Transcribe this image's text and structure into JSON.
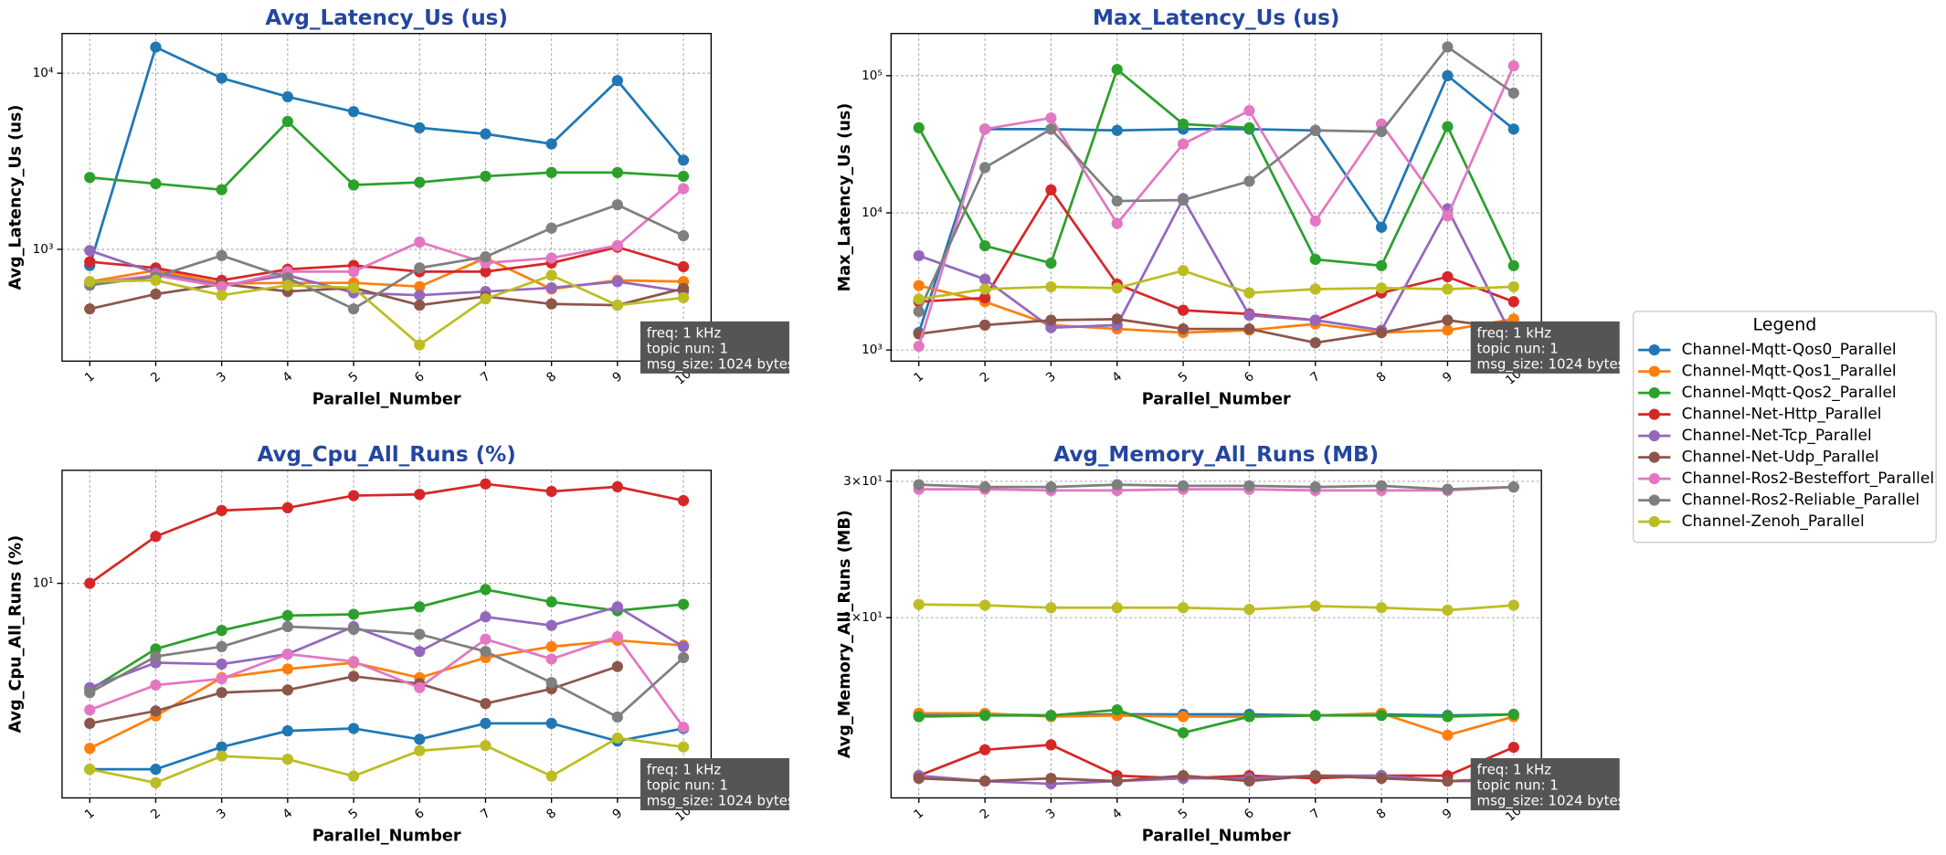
{
  "legend": {
    "title": "Legend",
    "position": "right"
  },
  "chart_data": [
    {
      "type": "line",
      "title": "Avg_Latency_Us  (us)",
      "xlabel": "Parallel_Number",
      "ylabel": "Avg_Latency_Us (us)",
      "log": true,
      "grid": true,
      "annotation": [
        "freq: 1 kHz",
        "topic nun: 1",
        "msg_size: 1024 bytes"
      ],
      "x": [
        1,
        2,
        3,
        4,
        5,
        6,
        7,
        8,
        9,
        10
      ],
      "xlim": [
        0.58,
        10.42
      ],
      "xticks": [
        1,
        2,
        3,
        4,
        5,
        6,
        7,
        8,
        9,
        10
      ],
      "ylim": [
        232,
        16800
      ],
      "yticks": [
        {
          "value": 1000,
          "label": "10³"
        },
        {
          "value": 10000,
          "label": "10⁴"
        }
      ],
      "series": [
        {
          "name": "Channel-Mqtt-Qos0_Parallel",
          "color": "#1f77b4",
          "values": [
            810,
            14060,
            9380,
            7350,
            6050,
            4900,
            4520,
            3970,
            9080,
            3210
          ]
        },
        {
          "name": "Channel-Mqtt-Qos1_Parallel",
          "color": "#ff7f0e",
          "values": [
            656,
            759,
            640,
            645,
            645,
            615,
            893,
            595,
            667,
            656
          ]
        },
        {
          "name": "Channel-Mqtt-Qos2_Parallel",
          "color": "#2ca02c",
          "values": [
            2560,
            2360,
            2180,
            5320,
            2320,
            2400,
            2600,
            2730,
            2730,
            2600
          ]
        },
        {
          "name": "Channel-Net-Http_Parallel",
          "color": "#d62728",
          "values": [
            850,
            784,
            667,
            770,
            810,
            747,
            747,
            837,
            1030,
            797
          ]
        },
        {
          "name": "Channel-Net-Tcp_Parallel",
          "color": "#9467bd",
          "values": [
            984,
            735,
            625,
            712,
            567,
            549,
            576,
            605,
            656,
            576
          ]
        },
        {
          "name": "Channel-Net-Udp_Parallel",
          "color": "#8c564b",
          "values": [
            459,
            557,
            635,
            577,
            605,
            482,
            540,
            490,
            482,
            600
          ]
        },
        {
          "name": "Channel-Ros2-Besteffort_Parallel",
          "color": "#e377c2",
          "values": [
            645,
            712,
            615,
            747,
            747,
            1100,
            837,
            893,
            1050,
            2210
          ]
        },
        {
          "name": "Channel-Ros2-Reliable_Parallel",
          "color": "#7f7f7f",
          "values": [
            625,
            700,
            922,
            689,
            459,
            784,
            907,
            1320,
            1790,
            1195
          ]
        },
        {
          "name": "Channel-Zenoh_Parallel",
          "color": "#bcbd22",
          "values": [
            656,
            667,
            549,
            625,
            605,
            287,
            523,
            712,
            482,
            531
          ]
        }
      ]
    },
    {
      "type": "line",
      "title": "Max_Latency_Us  (us)",
      "xlabel": "Parallel_Number",
      "ylabel": "Max_Latency_Us (us)",
      "log": true,
      "grid": true,
      "annotation": [
        "freq: 1 kHz",
        "topic nun: 1",
        "msg_size: 1024 bytes"
      ],
      "x": [
        1,
        2,
        3,
        4,
        5,
        6,
        7,
        8,
        9,
        10
      ],
      "xlim": [
        0.58,
        10.42
      ],
      "xticks": [
        1,
        2,
        3,
        4,
        5,
        6,
        7,
        8,
        9,
        10
      ],
      "ylim": [
        830,
        203000
      ],
      "yticks": [
        {
          "value": 1000,
          "label": "10³"
        },
        {
          "value": 10000,
          "label": "10⁴"
        },
        {
          "value": 100000,
          "label": "10⁵"
        }
      ],
      "series": [
        {
          "color": "#1f77b4",
          "values": [
            1340,
            40800,
            40800,
            39900,
            40800,
            40800,
            39900,
            7860,
            100000,
            40800
          ]
        },
        {
          "color": "#ff7f0e",
          "values": [
            2950,
            2250,
            1520,
            1425,
            1340,
            1395,
            1550,
            1340,
            1395,
            1680
          ]
        },
        {
          "color": "#2ca02c",
          "values": [
            41700,
            5750,
            4300,
            111000,
            44400,
            41700,
            4580,
            4120,
            42500,
            4120
          ]
        },
        {
          "color": "#d62728",
          "values": [
            2250,
            2400,
            14700,
            3020,
            1950,
            1830,
            1650,
            2610,
            3420,
            2250
          ]
        },
        {
          "color": "#9467bd",
          "values": [
            4870,
            3280,
            1455,
            1520,
            12700,
            1790,
            1650,
            1395,
            10700,
            1200
          ]
        },
        {
          "color": "#8c564b",
          "values": [
            1310,
            1520,
            1650,
            1680,
            1425,
            1425,
            1130,
            1340,
            1650,
            1425
          ]
        },
        {
          "color": "#e377c2",
          "values": [
            1065,
            40800,
            49200,
            8370,
            31800,
            55600,
            8720,
            44400,
            9500,
            118000
          ]
        },
        {
          "color": "#7f7f7f",
          "values": [
            1910,
            21400,
            40800,
            12200,
            12400,
            17000,
            39900,
            39100,
            162000,
            74800
          ]
        },
        {
          "color": "#bcbd22",
          "values": [
            2350,
            2780,
            2890,
            2830,
            3790,
            2610,
            2780,
            2830,
            2780,
            2890
          ]
        }
      ]
    },
    {
      "type": "line",
      "title": "Avg_Cpu_All_Runs  (%)",
      "xlabel": "Parallel_Number",
      "ylabel": "Avg_Cpu_All_Runs (%)",
      "log": true,
      "grid": true,
      "annotation": [
        "freq: 1 kHz",
        "topic nun: 1",
        "msg_size: 1024 bytes"
      ],
      "x": [
        1,
        2,
        3,
        4,
        5,
        6,
        7,
        8,
        9,
        10
      ],
      "xlim": [
        0.58,
        10.42
      ],
      "xticks": [
        1,
        2,
        3,
        4,
        5,
        6,
        7,
        8,
        9,
        10
      ],
      "ylim": [
        1.77,
        24.9
      ],
      "yticks": [
        {
          "value": 10,
          "label": "10¹"
        }
      ],
      "series": [
        {
          "color": "#1f77b4",
          "values": [
            2.23,
            2.23,
            2.67,
            3.04,
            3.1,
            2.84,
            3.23,
            3.23,
            2.8,
            3.1
          ]
        },
        {
          "color": "#ff7f0e",
          "values": [
            2.64,
            3.43,
            4.67,
            5.01,
            5.27,
            4.67,
            5.49,
            6.0,
            6.31,
            6.06
          ]
        },
        {
          "color": "#2ca02c",
          "values": [
            4.23,
            5.89,
            6.84,
            7.71,
            7.79,
            8.27,
            9.51,
            8.61,
            8.02,
            8.44
          ]
        },
        {
          "color": "#d62728",
          "values": [
            10.0,
            14.6,
            18.0,
            18.4,
            20.3,
            20.5,
            22.3,
            21.0,
            21.8,
            19.5
          ]
        },
        {
          "color": "#9467bd",
          "values": [
            4.31,
            5.27,
            5.21,
            5.65,
            7.05,
            5.77,
            7.63,
            7.12,
            8.27,
            6.0
          ]
        },
        {
          "color": "#8c564b",
          "values": [
            3.23,
            3.57,
            4.14,
            4.23,
            4.72,
            4.45,
            3.79,
            4.27,
            5.11,
            null
          ]
        },
        {
          "color": "#e377c2",
          "values": [
            3.6,
            4.4,
            4.63,
            5.65,
            5.32,
            4.31,
            6.37,
            5.43,
            6.5,
            3.13
          ]
        },
        {
          "color": "#7f7f7f",
          "values": [
            4.14,
            5.54,
            6.0,
            7.05,
            6.9,
            6.63,
            5.77,
            4.49,
            3.4,
            5.49
          ]
        },
        {
          "color": "#bcbd22",
          "values": [
            2.23,
            2.0,
            2.48,
            2.42,
            2.11,
            2.59,
            2.7,
            2.11,
            2.87,
            2.67
          ]
        }
      ]
    },
    {
      "type": "line",
      "title": "Avg_Memory_All_Runs  (MB)",
      "xlabel": "Parallel_Number",
      "ylabel": "Avg_Memory_All_Runs (MB)",
      "log": true,
      "grid": true,
      "annotation": [
        "freq: 1 kHz",
        "topic nun: 1",
        "msg_size: 1024 bytes"
      ],
      "x": [
        1,
        2,
        3,
        4,
        5,
        6,
        7,
        8,
        9,
        10
      ],
      "xlim": [
        0.58,
        10.42
      ],
      "xticks": [
        1,
        2,
        3,
        4,
        5,
        6,
        7,
        8,
        9,
        10
      ],
      "ylim": [
        11.7,
        31.0
      ],
      "yticks": [
        {
          "value": 20,
          "label": "2×10¹"
        },
        {
          "value": 30,
          "label": "3×10¹"
        }
      ],
      "series": [
        {
          "color": "#1f77b4",
          "values": [
            14.95,
            15.0,
            14.95,
            15.0,
            15.0,
            15.0,
            14.95,
            15.0,
            14.95,
            15.0
          ]
        },
        {
          "color": "#ff7f0e",
          "values": [
            15.05,
            15.05,
            14.9,
            14.95,
            14.9,
            14.9,
            14.95,
            15.05,
            14.1,
            14.9
          ]
        },
        {
          "color": "#2ca02c",
          "values": [
            14.9,
            14.95,
            14.95,
            15.2,
            14.2,
            14.9,
            14.95,
            14.95,
            14.9,
            15.0
          ]
        },
        {
          "color": "#d62728",
          "values": [
            12.5,
            13.5,
            13.7,
            12.5,
            12.4,
            12.5,
            12.4,
            12.5,
            12.5,
            13.6
          ]
        },
        {
          "color": "#9467bd",
          "values": [
            12.5,
            12.3,
            12.2,
            12.3,
            12.4,
            12.4,
            12.5,
            12.5,
            12.3,
            12.3
          ]
        },
        {
          "color": "#8c564b",
          "values": [
            12.4,
            12.3,
            12.4,
            12.3,
            12.5,
            12.3,
            12.5,
            12.4,
            12.3,
            12.4
          ]
        },
        {
          "color": "#e377c2",
          "values": [
            29.3,
            29.3,
            29.2,
            29.2,
            29.3,
            29.3,
            29.2,
            29.2,
            29.2,
            29.5
          ]
        },
        {
          "color": "#7f7f7f",
          "values": [
            29.7,
            29.5,
            29.5,
            29.7,
            29.6,
            29.6,
            29.5,
            29.6,
            29.3,
            29.5
          ]
        },
        {
          "color": "#bcbd22",
          "values": [
            20.8,
            20.75,
            20.6,
            20.6,
            20.6,
            20.5,
            20.7,
            20.6,
            20.45,
            20.75
          ]
        }
      ]
    }
  ]
}
